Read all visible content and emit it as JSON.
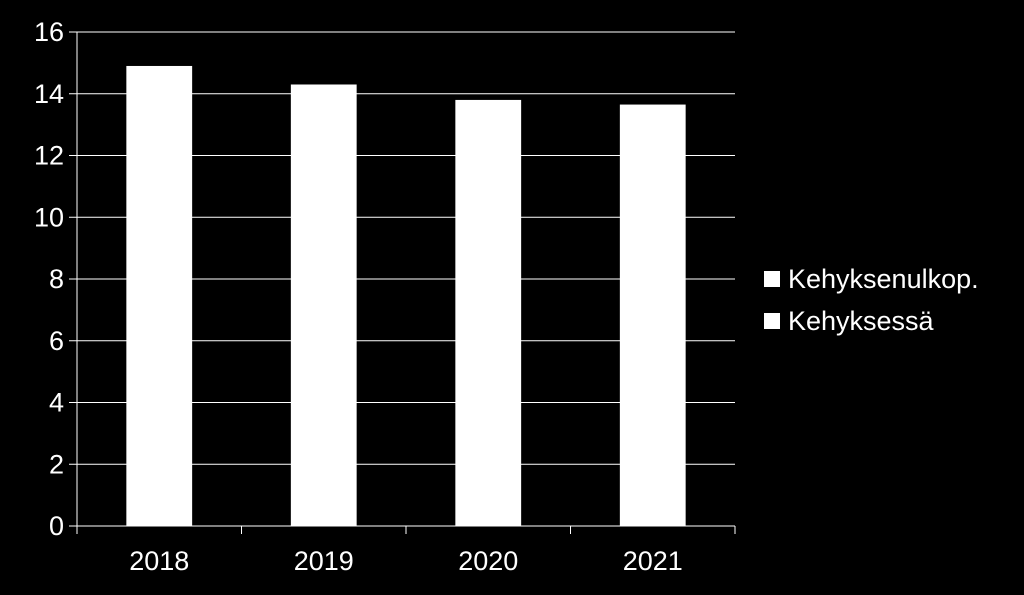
{
  "chart_data": {
    "type": "bar",
    "categories": [
      "2018",
      "2019",
      "2020",
      "2021"
    ],
    "series": [
      {
        "name": "Kehyksenulkop.",
        "values": [
          0,
          0,
          0,
          0
        ],
        "color": "#ffffff"
      },
      {
        "name": "Kehyksessä",
        "values": [
          14.9,
          14.3,
          13.8,
          13.65
        ],
        "color": "#ffffff"
      }
    ],
    "stacked": true,
    "title": "",
    "xlabel": "",
    "ylabel": "",
    "ylim": [
      0,
      16
    ],
    "yticks": [
      "0",
      "2",
      "4",
      "6",
      "8",
      "10",
      "12",
      "14",
      "16"
    ],
    "grid": true,
    "legend_position": "right",
    "colors": {
      "background": "#000000",
      "bars": "#ffffff",
      "grid": "#ffffff",
      "text": "#ffffff"
    }
  }
}
